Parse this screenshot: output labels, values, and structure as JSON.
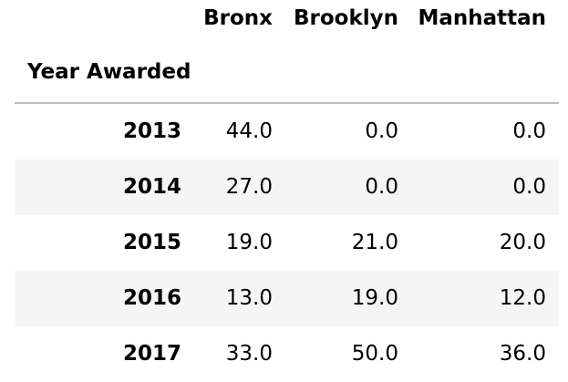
{
  "table": {
    "columns": [
      "Bronx",
      "Brooklyn",
      "Manhattan"
    ],
    "index_name": "Year Awarded",
    "rows": [
      {
        "index": "2013",
        "values": [
          "44.0",
          "0.0",
          "0.0"
        ]
      },
      {
        "index": "2014",
        "values": [
          "27.0",
          "0.0",
          "0.0"
        ]
      },
      {
        "index": "2015",
        "values": [
          "19.0",
          "21.0",
          "20.0"
        ]
      },
      {
        "index": "2016",
        "values": [
          "13.0",
          "19.0",
          "12.0"
        ]
      },
      {
        "index": "2017",
        "values": [
          "33.0",
          "50.0",
          "36.0"
        ]
      }
    ]
  }
}
